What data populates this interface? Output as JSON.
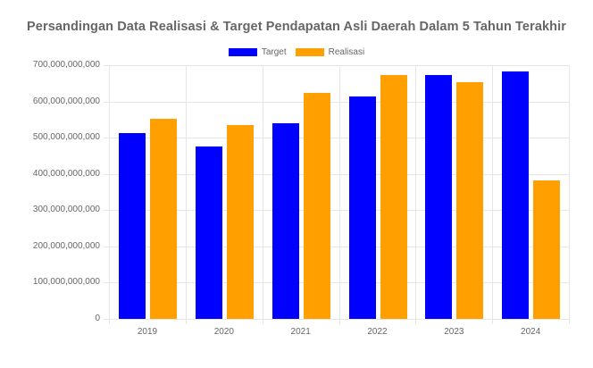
{
  "title": "Persandingan Data Realisasi & Target Pendapatan Asli Daerah Dalam 5 Tahun Terakhir",
  "legend": [
    {
      "label": "Target",
      "color": "#0000ff"
    },
    {
      "label": "Realisasi",
      "color": "#ff9f00"
    }
  ],
  "y_ticks": [
    "700,000,000,000",
    "600,000,000,000",
    "500,000,000,000",
    "400,000,000,000",
    "300,000,000,000",
    "200,000,000,000",
    "100,000,000,000",
    "0"
  ],
  "chart_data": {
    "type": "bar",
    "title": "Persandingan Data Realisasi & Target Pendapatan Asli Daerah Dalam 5 Tahun Terakhir",
    "xlabel": "",
    "ylabel": "",
    "categories": [
      "2019",
      "2020",
      "2021",
      "2022",
      "2023",
      "2024"
    ],
    "series": [
      {
        "name": "Target",
        "color": "#0000ff",
        "values": [
          513000000000,
          476000000000,
          539000000000,
          615000000000,
          672000000000,
          683000000000
        ]
      },
      {
        "name": "Realisasi",
        "color": "#ff9f00",
        "values": [
          552000000000,
          535000000000,
          624000000000,
          673000000000,
          654000000000,
          382000000000
        ]
      }
    ],
    "ylim": [
      0,
      700000000000
    ],
    "y_tick_step": 100000000000,
    "grid": true,
    "legend_position": "top"
  }
}
